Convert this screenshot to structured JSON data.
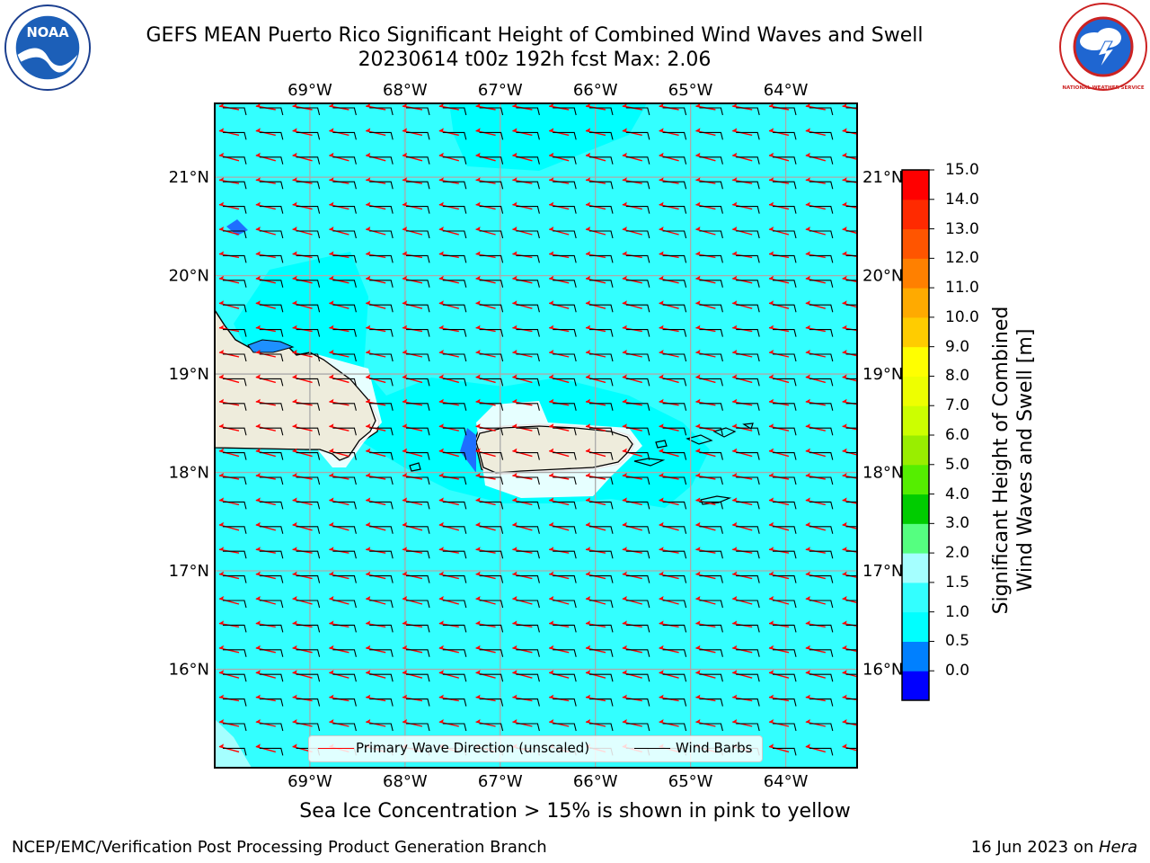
{
  "title": {
    "line1": "GEFS MEAN Puerto Rico Significant Height of Combined Wind Waves and Swell",
    "line2": "20230614 t00z 192h fcst   Max: 2.06"
  },
  "logos": {
    "left": "NOAA",
    "right": "NATIONAL WEATHER SERVICE"
  },
  "map": {
    "lon_labels": [
      "69°W",
      "68°W",
      "67°W",
      "66°W",
      "65°W",
      "64°W"
    ],
    "lat_labels": [
      "21°N",
      "20°N",
      "19°N",
      "18°N",
      "17°N",
      "16°N"
    ],
    "lon_range": [
      -70.0,
      -63.25
    ],
    "lat_range": [
      15.0,
      21.75
    ],
    "colors": {
      "ocean": "#33ffff",
      "land": "#eeecdc",
      "wave_arrow": "#ff0000",
      "barb": "#000000",
      "grid": "#aaaaaa"
    }
  },
  "colorbar": {
    "ticks": [
      "15.0",
      "14.0",
      "13.0",
      "12.0",
      "11.0",
      "10.0",
      "9.0",
      "8.0",
      "7.0",
      "6.0",
      "5.0",
      "4.0",
      "3.0",
      "2.0",
      "1.5",
      "1.0",
      "0.5",
      "0.0"
    ],
    "colors": [
      "#0000ff",
      "#0080ff",
      "#00ffff",
      "#33ffff",
      "#a5ffff",
      "#55ff80",
      "#00cc00",
      "#55ee00",
      "#99ee00",
      "#ccff00",
      "#eeff00",
      "#ffff00",
      "#ffcc00",
      "#ffaa00",
      "#ff8000",
      "#ff5500",
      "#ff2a00",
      "#ff0000"
    ],
    "label_line1": "Significant Height of Combined",
    "label_line2": "Wind Waves and Swell [m]"
  },
  "legend": {
    "wave_direction": "Primary Wave Direction (unscaled)",
    "wind_barbs": "Wind Barbs"
  },
  "sea_ice_note": "Sea Ice Concentration > 15% is shown in pink to yellow",
  "footer": {
    "left": "NCEP/EMC/Verification Post Processing Product Generation Branch",
    "date": "16 Jun 2023 on ",
    "host": "Hera"
  }
}
